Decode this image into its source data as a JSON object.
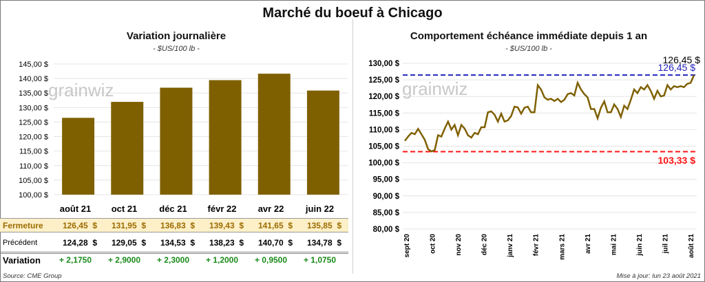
{
  "title": "Marché du boeuf à Chicago",
  "left": {
    "subtitle": "Variation journalière",
    "unit": "- $US/100 lb -",
    "watermark": "grainwiz",
    "table": {
      "columns": [
        "août 21",
        "oct 21",
        "déc 21",
        "févr 22",
        "avr 22",
        "juin 22"
      ],
      "rows": [
        {
          "label": "Fermeture",
          "values": [
            "126,45  $",
            "131,95  $",
            "136,83  $",
            "139,43  $",
            "141,65  $",
            "135,85  $"
          ]
        },
        {
          "label": "Précédent",
          "values": [
            "124,28  $",
            "129,05  $",
            "134,53  $",
            "138,23  $",
            "140,70  $",
            "134,78  $"
          ]
        },
        {
          "label": "Variation",
          "values": [
            "+ 2,1750",
            "+ 2,9000",
            "+ 2,3000",
            "+ 1,2000",
            "+ 0,9500",
            "+ 1,0750"
          ]
        }
      ]
    },
    "source": "Source: CME Group"
  },
  "right": {
    "subtitle": "Comportement  échéance immédiate depuis 1 an",
    "unit": "- $US/100 lb -",
    "watermark": "grainwiz",
    "update": "Mise à jour: lun 23 août 2021"
  },
  "colors": {
    "bar": "#7f6000",
    "line": "#7f6000",
    "high": "#2222bb",
    "low": "#ff1111",
    "fermeture_bg": "#fdf0c8",
    "fermeture_text": "#9c6b00",
    "variation_pos": "#1a8a1a"
  },
  "chart_data": [
    {
      "type": "bar",
      "categories": [
        "août 21",
        "oct 21",
        "déc 21",
        "févr 22",
        "avr 22",
        "juin 22"
      ],
      "values": [
        126.45,
        131.95,
        136.83,
        139.43,
        141.65,
        135.85
      ],
      "ylim": [
        100,
        145
      ],
      "yticks": [
        "100,00 $",
        "105,00 $",
        "110,00 $",
        "115,00 $",
        "120,00 $",
        "125,00 $",
        "130,00 $",
        "135,00 $",
        "140,00 $",
        "145,00 $"
      ],
      "grid": true
    },
    {
      "type": "line",
      "x_range": [
        "2020-08-24",
        "2021-08-23"
      ],
      "x_ticks": [
        "sept 20",
        "oct 20",
        "nov 20",
        "déc 20",
        "janv 21",
        "févr 21",
        "mars 21",
        "avr 21",
        "mai 21",
        "juin 21",
        "juil 21",
        "août 21"
      ],
      "ylim": [
        80,
        130
      ],
      "yticks": [
        "80,00 $",
        "85,00 $",
        "90,00 $",
        "95,00 $",
        "100,00 $",
        "105,00 $",
        "110,00 $",
        "115,00 $",
        "120,00 $",
        "125,00 $",
        "130,00 $"
      ],
      "grid": true,
      "values": [
        106.6,
        107.9,
        109,
        108.6,
        110.2,
        108.6,
        106.9,
        104.1,
        103.4,
        103.8,
        108.3,
        107.9,
        110.3,
        112.4,
        110,
        111.4,
        108.3,
        111.4,
        110.3,
        108.3,
        107.6,
        109,
        108.6,
        110.7,
        110.7,
        115.2,
        115.5,
        114.5,
        112.4,
        114.8,
        112.4,
        112.8,
        114.1,
        116.9,
        116.7,
        114.8,
        116.6,
        116.9,
        115.2,
        115.2,
        123.4,
        122.1,
        119.7,
        119,
        119.3,
        118.6,
        119.3,
        118.3,
        119,
        120.7,
        121,
        120.3,
        124.1,
        122.1,
        120.7,
        119.7,
        116.2,
        116.2,
        113.4,
        116.6,
        118.5,
        115.2,
        115.2,
        117.6,
        116.2,
        113.8,
        117.2,
        116.2,
        119,
        122.1,
        121,
        122.8,
        122.1,
        123.4,
        121.7,
        119.3,
        121.7,
        120,
        120.3,
        123.4,
        122.1,
        123.1,
        122.8,
        123.1,
        122.8,
        123.8,
        124.1,
        126.45
      ],
      "high": {
        "value": 126.45,
        "label": "126,45 $"
      },
      "low": {
        "value": 103.33,
        "label": "103,33 $"
      },
      "last_label": "126,45 $"
    }
  ]
}
